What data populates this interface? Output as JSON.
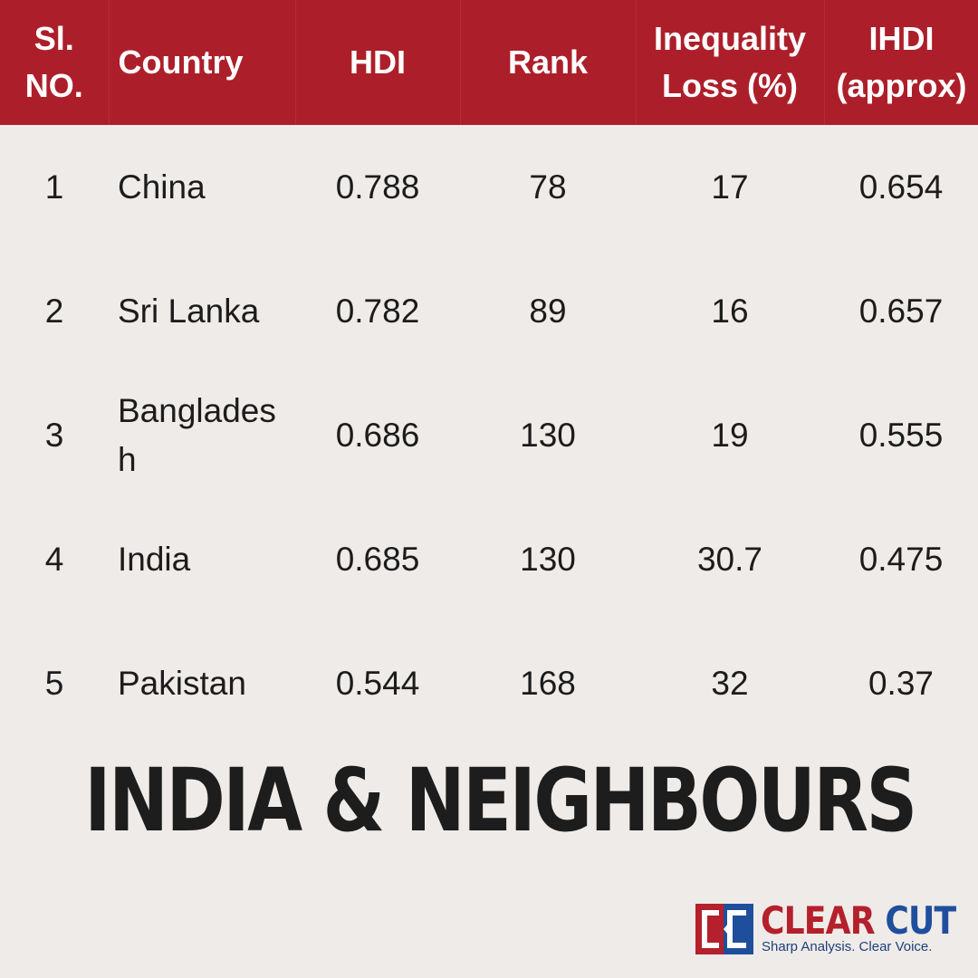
{
  "table": {
    "headers": {
      "sl": "Sl. NO.",
      "country": "Country",
      "hdi": "HDI",
      "rank": "Rank",
      "inequality": "Inequality Loss (%)",
      "ihdi": "IHDI (approx)"
    },
    "rows": [
      {
        "sl": "1",
        "country": "China",
        "hdi": "0.788",
        "rank": "78",
        "inequality": "17",
        "ihdi": "0.654"
      },
      {
        "sl": "2",
        "country": "Sri Lanka",
        "hdi": "0.782",
        "rank": "89",
        "inequality": "16",
        "ihdi": "0.657"
      },
      {
        "sl": "3",
        "country": "Bangladesh",
        "hdi": "0.686",
        "rank": "130",
        "inequality": "19",
        "ihdi": "0.555"
      },
      {
        "sl": "4",
        "country": "India",
        "hdi": "0.685",
        "rank": "130",
        "inequality": "30.7",
        "ihdi": "0.475"
      },
      {
        "sl": "5",
        "country": "Pakistan",
        "hdi": "0.544",
        "rank": "168",
        "inequality": "32",
        "ihdi": "0.37"
      }
    ]
  },
  "title": "INDIA & NEIGHBOURS",
  "logo": {
    "name_part1": "CLEAR",
    "name_part2": "CUT",
    "tagline": "Sharp Analysis. Clear Voice."
  },
  "colors": {
    "header_bg": "#ac1f2a",
    "page_bg": "#efebe8",
    "logo_red": "#b4202b",
    "logo_blue": "#1f4f9c"
  }
}
